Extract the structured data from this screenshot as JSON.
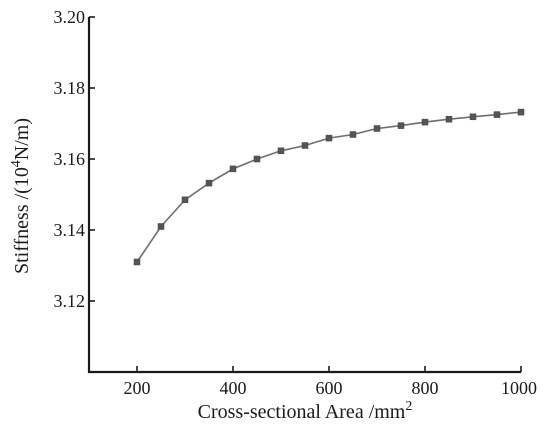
{
  "chart_data": {
    "type": "line",
    "xlabel": "Cross-sectional Area /mm",
    "xlabel_superscript": "2",
    "ylabel_prefix": "Stiffness /(10",
    "ylabel_superscript": "4",
    "ylabel_suffix": "N/m)",
    "xlim": [
      100,
      1000
    ],
    "ylim": [
      3.1,
      3.2
    ],
    "x_ticks": [
      200,
      400,
      600,
      800,
      1000
    ],
    "x_tick_labels": [
      "200",
      "400",
      "600",
      "800",
      "1000"
    ],
    "y_ticks": [
      3.12,
      3.14,
      3.16,
      3.18,
      3.2
    ],
    "y_tick_labels": [
      "3.12",
      "3.14",
      "3.16",
      "3.18",
      "3.20"
    ],
    "grid": false,
    "line_color": "#6e6e6e",
    "marker_color": "#555555",
    "marker": "square",
    "series": [
      {
        "x": [
          200,
          250,
          300,
          350,
          400,
          450,
          500,
          550,
          600,
          650,
          700,
          750,
          800,
          850,
          900,
          950,
          1000
        ],
        "y": [
          3.131,
          3.141,
          3.1485,
          3.1532,
          3.1572,
          3.16,
          3.1623,
          3.1638,
          3.1659,
          3.1669,
          3.1686,
          3.1694,
          3.1704,
          3.1712,
          3.1719,
          3.1725,
          3.1732
        ]
      }
    ]
  }
}
